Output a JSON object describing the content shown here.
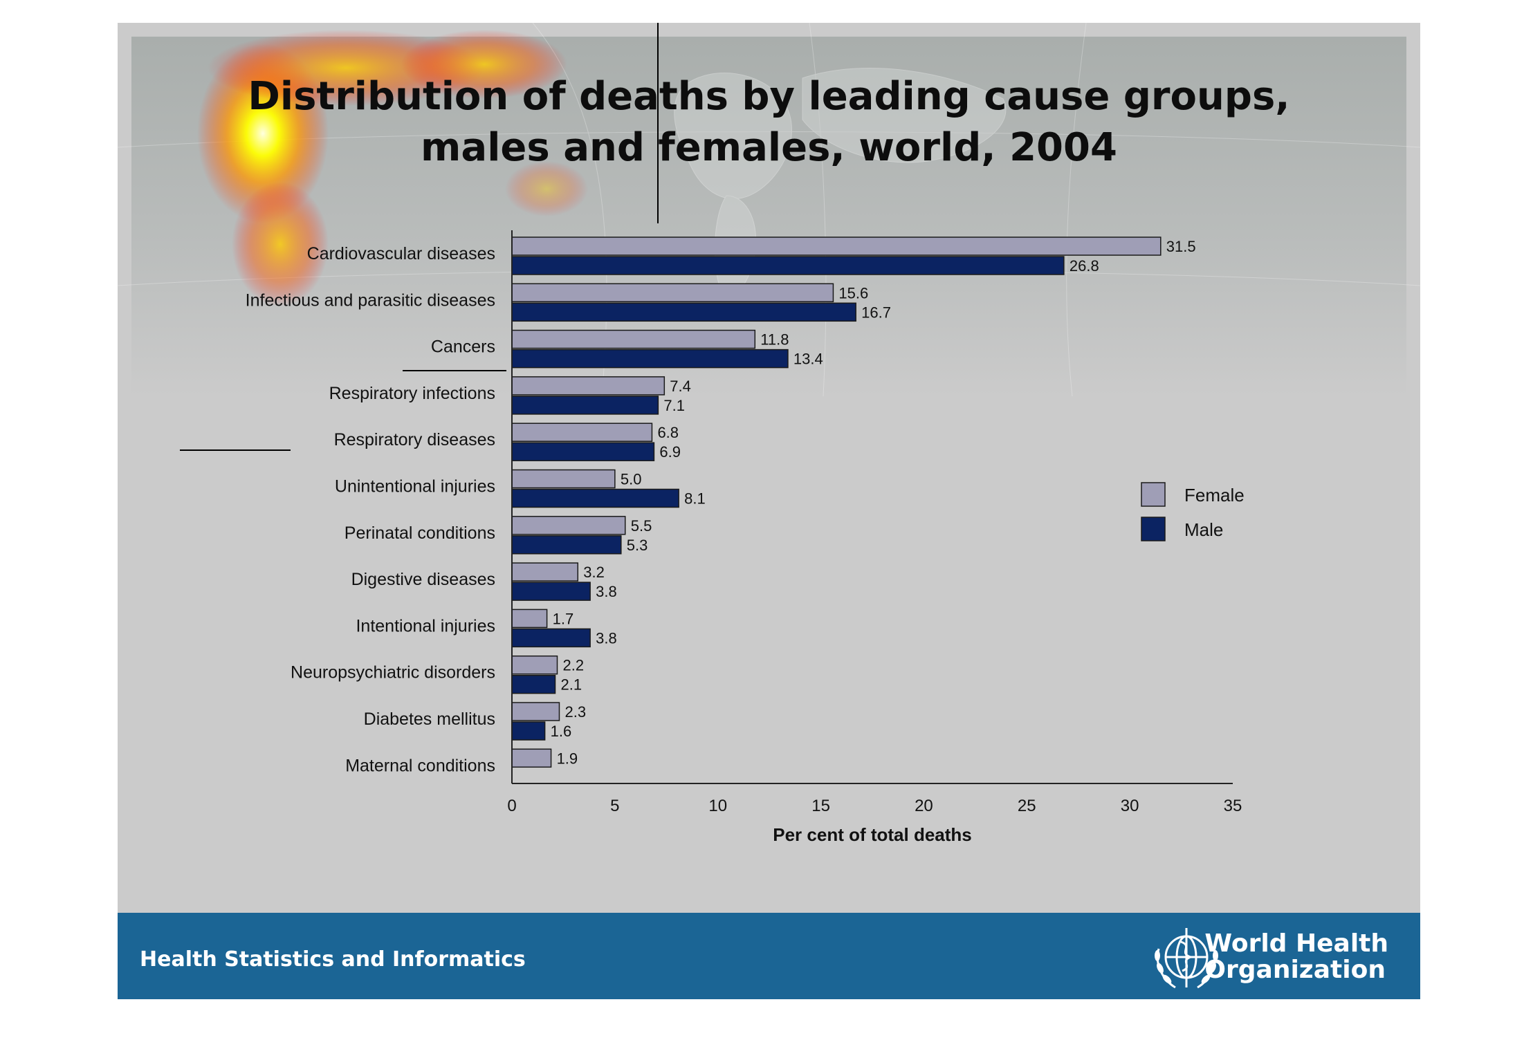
{
  "title_line1": "Distribution of deaths by leading cause groups,",
  "title_line2": "males and females, world, 2004",
  "footer": {
    "text": "Health Statistics and Informatics",
    "org_line1": "World Health",
    "org_line2": "Organization"
  },
  "colors": {
    "female": "#9f9eb6",
    "male": "#0b2362",
    "footer": "#1b6595"
  },
  "icons": {
    "logo": "who-emblem-icon"
  },
  "chart_data": {
    "type": "bar",
    "orientation": "horizontal",
    "xlabel": "Per cent of total deaths",
    "ylabel": "",
    "xlim": [
      0,
      35
    ],
    "xticks": [
      0,
      5,
      10,
      15,
      20,
      25,
      30,
      35
    ],
    "grid": false,
    "legend_position": "right",
    "categories": [
      "Cardiovascular diseases",
      "Infectious and parasitic diseases",
      "Cancers",
      "Respiratory infections",
      "Respiratory diseases",
      "Unintentional injuries",
      "Perinatal conditions",
      "Digestive diseases",
      "Intentional injuries",
      "Neuropsychiatric disorders",
      "Diabetes mellitus",
      "Maternal conditions"
    ],
    "series": [
      {
        "name": "Female",
        "values": [
          31.5,
          15.6,
          11.8,
          7.4,
          6.8,
          5.0,
          5.5,
          3.2,
          1.7,
          2.2,
          2.3,
          1.9
        ],
        "labels": [
          "31.5",
          "15.6",
          "11.8",
          "7.4",
          "6.8",
          "5.0",
          "5.5",
          "3.2",
          "1.7",
          "2.2",
          "2.3",
          "1.9"
        ]
      },
      {
        "name": "Male",
        "values": [
          26.8,
          16.7,
          13.4,
          7.1,
          6.9,
          8.1,
          5.3,
          3.8,
          3.8,
          2.1,
          1.6,
          null
        ],
        "labels": [
          "26.8",
          "16.7",
          "13.4",
          "7.1",
          "6.9",
          "8.1",
          "5.3",
          "3.8",
          "3.8",
          "2.1",
          "1.6",
          ""
        ]
      }
    ]
  }
}
